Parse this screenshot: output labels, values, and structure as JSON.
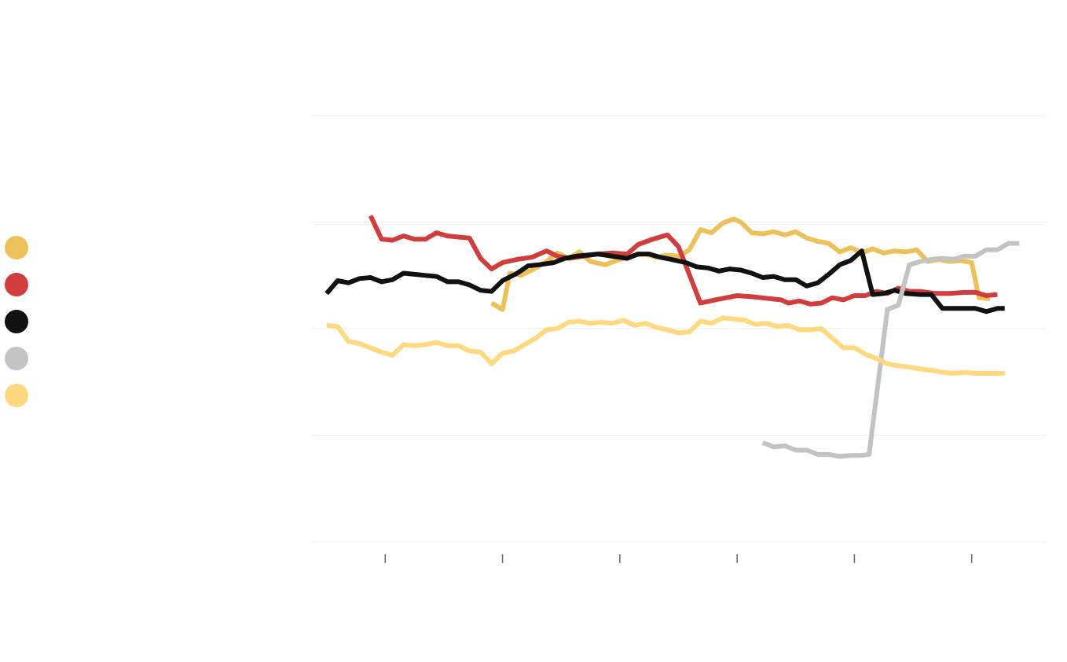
{
  "chart_data": {
    "type": "line",
    "title": "",
    "xlabel": "",
    "ylabel": "",
    "x_range": [
      0,
      100
    ],
    "y_range": [
      0,
      4
    ],
    "grid": true,
    "legend_position": "left",
    "x_ticks": [
      10,
      26,
      42,
      58,
      74,
      90
    ],
    "series": [
      {
        "name": "",
        "color": "#ECC159",
        "width": 6,
        "points": [
          [
            24.5,
            2.24
          ],
          [
            26,
            2.18
          ],
          [
            27,
            2.52
          ],
          [
            28.5,
            2.5
          ],
          [
            30,
            2.55
          ],
          [
            32,
            2.63
          ],
          [
            33.5,
            2.71
          ],
          [
            35,
            2.66
          ],
          [
            36.5,
            2.72
          ],
          [
            38,
            2.63
          ],
          [
            40,
            2.6
          ],
          [
            42,
            2.65
          ],
          [
            44,
            2.69
          ],
          [
            45.5,
            2.7
          ],
          [
            47,
            2.67
          ],
          [
            48.5,
            2.69
          ],
          [
            50,
            2.68
          ],
          [
            51.5,
            2.74
          ],
          [
            53,
            2.93
          ],
          [
            54.5,
            2.9
          ],
          [
            56,
            2.99
          ],
          [
            57.5,
            3.03
          ],
          [
            58.5,
            3.0
          ],
          [
            60,
            2.9
          ],
          [
            61.5,
            2.89
          ],
          [
            63,
            2.91
          ],
          [
            64.5,
            2.88
          ],
          [
            66,
            2.91
          ],
          [
            67.5,
            2.85
          ],
          [
            69,
            2.82
          ],
          [
            70.5,
            2.8
          ],
          [
            72,
            2.72
          ],
          [
            73.5,
            2.76
          ],
          [
            75,
            2.71
          ],
          [
            76.5,
            2.75
          ],
          [
            78,
            2.71
          ],
          [
            79.5,
            2.73
          ],
          [
            81,
            2.72
          ],
          [
            82.5,
            2.74
          ],
          [
            84,
            2.63
          ],
          [
            85.5,
            2.65
          ],
          [
            87,
            2.63
          ],
          [
            88.5,
            2.64
          ],
          [
            90,
            2.62
          ],
          [
            91,
            2.29
          ],
          [
            92.5,
            2.28
          ]
        ]
      },
      {
        "name": "",
        "color": "#D13C3C",
        "width": 6,
        "points": [
          [
            8,
            3.06
          ],
          [
            9.5,
            2.84
          ],
          [
            11,
            2.83
          ],
          [
            12.5,
            2.87
          ],
          [
            14,
            2.84
          ],
          [
            15.5,
            2.84
          ],
          [
            17,
            2.9
          ],
          [
            18.5,
            2.87
          ],
          [
            20,
            2.86
          ],
          [
            21.5,
            2.85
          ],
          [
            23,
            2.66
          ],
          [
            24.5,
            2.56
          ],
          [
            26,
            2.62
          ],
          [
            28,
            2.65
          ],
          [
            30,
            2.67
          ],
          [
            32,
            2.73
          ],
          [
            33.5,
            2.68
          ],
          [
            35,
            2.66
          ],
          [
            37,
            2.68
          ],
          [
            39,
            2.7
          ],
          [
            41,
            2.71
          ],
          [
            43,
            2.7
          ],
          [
            44.5,
            2.79
          ],
          [
            46.5,
            2.84
          ],
          [
            48.5,
            2.88
          ],
          [
            50,
            2.77
          ],
          [
            53,
            2.24
          ],
          [
            55,
            2.27
          ],
          [
            58,
            2.31
          ],
          [
            60,
            2.3
          ],
          [
            64,
            2.27
          ],
          [
            65,
            2.24
          ],
          [
            66.5,
            2.26
          ],
          [
            68,
            2.23
          ],
          [
            69.5,
            2.24
          ],
          [
            71,
            2.29
          ],
          [
            72.5,
            2.27
          ],
          [
            74,
            2.31
          ],
          [
            75.5,
            2.31
          ],
          [
            77,
            2.35
          ],
          [
            78.5,
            2.33
          ],
          [
            80,
            2.38
          ],
          [
            81.5,
            2.35
          ],
          [
            83,
            2.35
          ],
          [
            85,
            2.33
          ],
          [
            87,
            2.33
          ],
          [
            89,
            2.34
          ],
          [
            90.5,
            2.34
          ],
          [
            92,
            2.31
          ],
          [
            93.5,
            2.32
          ]
        ]
      },
      {
        "name": "",
        "color": "#111111",
        "width": 6,
        "points": [
          [
            2,
            2.33
          ],
          [
            3.5,
            2.45
          ],
          [
            5,
            2.43
          ],
          [
            6.5,
            2.47
          ],
          [
            8,
            2.48
          ],
          [
            9.5,
            2.44
          ],
          [
            11,
            2.46
          ],
          [
            12.5,
            2.52
          ],
          [
            14,
            2.51
          ],
          [
            15.5,
            2.5
          ],
          [
            17,
            2.49
          ],
          [
            18.5,
            2.44
          ],
          [
            20,
            2.44
          ],
          [
            21.5,
            2.41
          ],
          [
            23,
            2.36
          ],
          [
            24.5,
            2.35
          ],
          [
            26,
            2.45
          ],
          [
            28,
            2.52
          ],
          [
            29.5,
            2.59
          ],
          [
            31,
            2.6
          ],
          [
            33,
            2.62
          ],
          [
            34.5,
            2.66
          ],
          [
            36,
            2.68
          ],
          [
            39,
            2.7
          ],
          [
            41,
            2.68
          ],
          [
            43,
            2.66
          ],
          [
            44.5,
            2.7
          ],
          [
            46,
            2.7
          ],
          [
            47.5,
            2.67
          ],
          [
            49,
            2.65
          ],
          [
            51,
            2.62
          ],
          [
            52.5,
            2.58
          ],
          [
            54,
            2.57
          ],
          [
            55.5,
            2.54
          ],
          [
            57,
            2.56
          ],
          [
            58.5,
            2.55
          ],
          [
            60,
            2.52
          ],
          [
            61.5,
            2.48
          ],
          [
            63,
            2.49
          ],
          [
            64.5,
            2.46
          ],
          [
            66,
            2.46
          ],
          [
            67.5,
            2.4
          ],
          [
            69,
            2.43
          ],
          [
            70.5,
            2.51
          ],
          [
            72,
            2.6
          ],
          [
            73.5,
            2.64
          ],
          [
            75,
            2.73
          ],
          [
            76.5,
            2.32
          ],
          [
            78,
            2.33
          ],
          [
            79.5,
            2.36
          ],
          [
            81,
            2.33
          ],
          [
            83,
            2.32
          ],
          [
            84.5,
            2.32
          ],
          [
            86,
            2.19
          ],
          [
            87.5,
            2.19
          ],
          [
            89,
            2.19
          ],
          [
            90.5,
            2.19
          ],
          [
            92,
            2.16
          ],
          [
            93.5,
            2.19
          ],
          [
            94.5,
            2.19
          ]
        ]
      },
      {
        "name": "",
        "color": "#C3C3C3",
        "width": 6,
        "points": [
          [
            61.5,
            0.93
          ],
          [
            63,
            0.89
          ],
          [
            64.5,
            0.9
          ],
          [
            66,
            0.86
          ],
          [
            67.5,
            0.86
          ],
          [
            69,
            0.82
          ],
          [
            70.5,
            0.82
          ],
          [
            72,
            0.8
          ],
          [
            73.5,
            0.81
          ],
          [
            75,
            0.81
          ],
          [
            76,
            0.82
          ],
          [
            78.5,
            2.18
          ],
          [
            80,
            2.22
          ],
          [
            81.5,
            2.6
          ],
          [
            83,
            2.63
          ],
          [
            84.5,
            2.65
          ],
          [
            86,
            2.66
          ],
          [
            87.5,
            2.65
          ],
          [
            89,
            2.68
          ],
          [
            90.5,
            2.68
          ],
          [
            92,
            2.74
          ],
          [
            93.5,
            2.74
          ],
          [
            95,
            2.8
          ],
          [
            96.5,
            2.8
          ]
        ]
      },
      {
        "name": "",
        "color": "#FFD97F",
        "width": 6,
        "points": [
          [
            2,
            2.03
          ],
          [
            3.5,
            2.02
          ],
          [
            5,
            1.88
          ],
          [
            6.5,
            1.86
          ],
          [
            8,
            1.82
          ],
          [
            9.5,
            1.78
          ],
          [
            11,
            1.75
          ],
          [
            12.5,
            1.85
          ],
          [
            14,
            1.84
          ],
          [
            15.5,
            1.85
          ],
          [
            17,
            1.87
          ],
          [
            18.5,
            1.84
          ],
          [
            20,
            1.84
          ],
          [
            21.5,
            1.79
          ],
          [
            23,
            1.78
          ],
          [
            24.5,
            1.67
          ],
          [
            26,
            1.77
          ],
          [
            27.5,
            1.79
          ],
          [
            29,
            1.85
          ],
          [
            30.5,
            1.91
          ],
          [
            32,
            1.99
          ],
          [
            33.5,
            2.0
          ],
          [
            35,
            2.06
          ],
          [
            36.5,
            2.07
          ],
          [
            38,
            2.05
          ],
          [
            39.5,
            2.06
          ],
          [
            41,
            2.05
          ],
          [
            42.5,
            2.08
          ],
          [
            44,
            2.03
          ],
          [
            45.5,
            2.05
          ],
          [
            47,
            2.01
          ],
          [
            48.5,
            1.99
          ],
          [
            50,
            1.96
          ],
          [
            51.5,
            1.97
          ],
          [
            53,
            2.07
          ],
          [
            54.5,
            2.05
          ],
          [
            56,
            2.1
          ],
          [
            57.5,
            2.09
          ],
          [
            59,
            2.08
          ],
          [
            60.5,
            2.04
          ],
          [
            62,
            2.05
          ],
          [
            63.5,
            2.02
          ],
          [
            65,
            2.03
          ],
          [
            66.5,
            1.99
          ],
          [
            68,
            1.99
          ],
          [
            69.5,
            2.0
          ],
          [
            71,
            1.91
          ],
          [
            72.5,
            1.82
          ],
          [
            74,
            1.82
          ],
          [
            75.5,
            1.76
          ],
          [
            77,
            1.72
          ],
          [
            78.5,
            1.67
          ],
          [
            80,
            1.65
          ],
          [
            81.5,
            1.64
          ],
          [
            83,
            1.62
          ],
          [
            84.5,
            1.61
          ],
          [
            86,
            1.59
          ],
          [
            87.5,
            1.58
          ],
          [
            89,
            1.59
          ],
          [
            90.5,
            1.58
          ],
          [
            92,
            1.58
          ],
          [
            94.5,
            1.58
          ]
        ]
      }
    ]
  }
}
